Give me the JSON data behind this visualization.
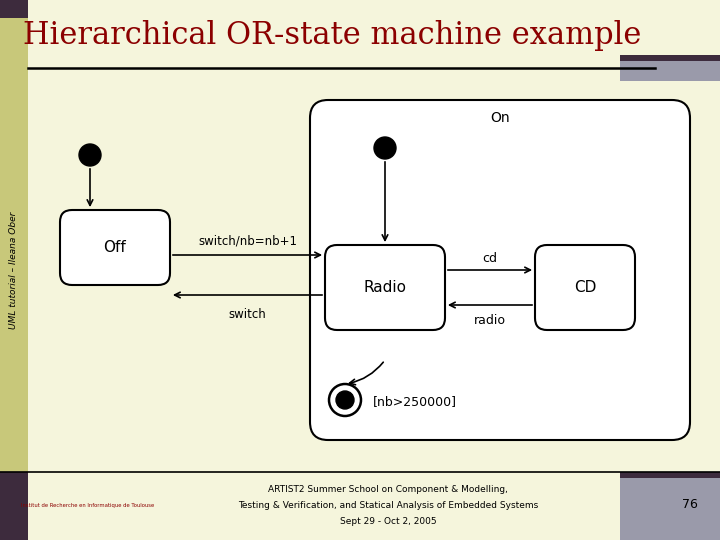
{
  "title": "Hierarchical OR-state machine example",
  "title_color": "#8B0000",
  "bg_color": "#F5F5DC",
  "sidebar_color": "#C8C87A",
  "sidebar_dark": "#3D2B3D",
  "sidebar_label": "UML tutorial – Ileana Ober",
  "footer_text1": "ARTIST2 Summer School on Component & Modelling,",
  "footer_text2": "Testing & Verification, and Statical Analysis of Embedded Systems",
  "footer_text3": "Sept 29 - Oct 2, 2005",
  "footer_page": "76",
  "footer_logo": "Institut de Recherche en Informatique de Toulouse",
  "label_on": "On",
  "label_off": "Off",
  "label_radio": "Radio",
  "label_cd": "CD",
  "label_switch_nb": "switch/nb=nb+1",
  "label_switch": "switch",
  "label_cd_trans": "cd",
  "label_radio_trans": "radio",
  "label_nb": "[nb>250000]"
}
